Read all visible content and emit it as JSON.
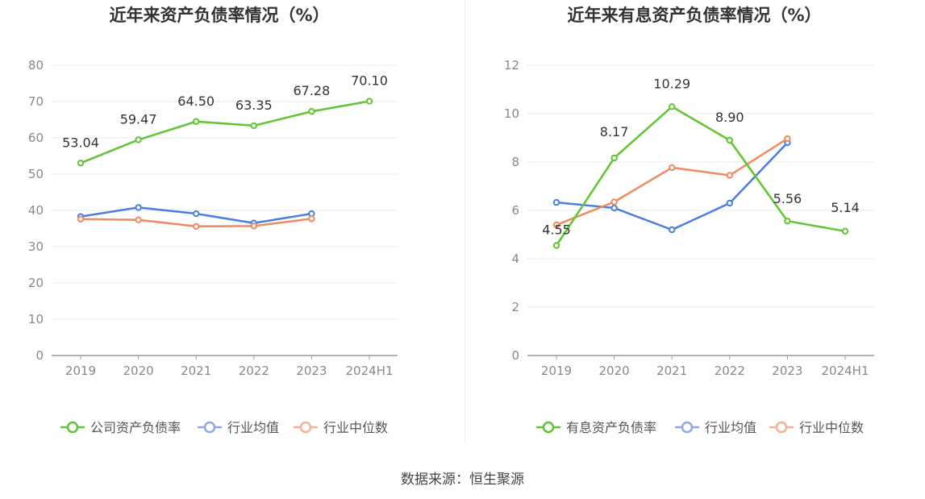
{
  "colors": {
    "company": "#5fc532",
    "avg": "#4a7ee0",
    "median": "#f08a62",
    "legend_avg": "#8aabec",
    "legend_median": "#f5b096"
  },
  "chart_data": [
    {
      "type": "line",
      "title": "近年来资产负债率情况（%）",
      "categories": [
        "2019",
        "2020",
        "2021",
        "2022",
        "2023",
        "2024H1"
      ],
      "y_ticks": [
        "0",
        "10",
        "20",
        "30",
        "40",
        "50",
        "60",
        "70",
        "80"
      ],
      "ylim": [
        0,
        80
      ],
      "grid": true,
      "legend_position": "bottom",
      "series": [
        {
          "name": "公司资产负债率",
          "color_key": "company",
          "values": [
            53.04,
            59.47,
            64.5,
            63.35,
            67.28,
            70.1
          ],
          "labels": [
            "53.04",
            "59.47",
            "64.50",
            "63.35",
            "67.28",
            "70.10"
          ]
        },
        {
          "name": "行业均值",
          "color_key": "avg",
          "values": [
            38.3,
            40.8,
            39.1,
            36.5,
            39.1,
            null
          ]
        },
        {
          "name": "行业中位数",
          "color_key": "median",
          "values": [
            37.6,
            37.4,
            35.6,
            35.7,
            37.7,
            null
          ]
        }
      ]
    },
    {
      "type": "line",
      "title": "近年来有息资产负债率情况（%）",
      "categories": [
        "2019",
        "2020",
        "2021",
        "2022",
        "2023",
        "2024H1"
      ],
      "y_ticks": [
        "0",
        "2",
        "4",
        "6",
        "8",
        "10",
        "12"
      ],
      "ylim": [
        0,
        12
      ],
      "grid": true,
      "legend_position": "bottom",
      "series": [
        {
          "name": "有息资产负债率",
          "color_key": "company",
          "values": [
            4.55,
            8.17,
            10.29,
            8.9,
            5.56,
            5.14
          ],
          "labels": [
            "4.55",
            "8.17",
            "10.29",
            "8.90",
            "5.56",
            "5.14"
          ]
        },
        {
          "name": "行业均值",
          "color_key": "avg",
          "values": [
            6.33,
            6.1,
            5.2,
            6.3,
            8.8,
            null
          ]
        },
        {
          "name": "行业中位数",
          "color_key": "median",
          "values": [
            5.4,
            6.35,
            7.77,
            7.45,
            8.97,
            null
          ]
        }
      ]
    }
  ],
  "source": "数据来源：恒生聚源"
}
